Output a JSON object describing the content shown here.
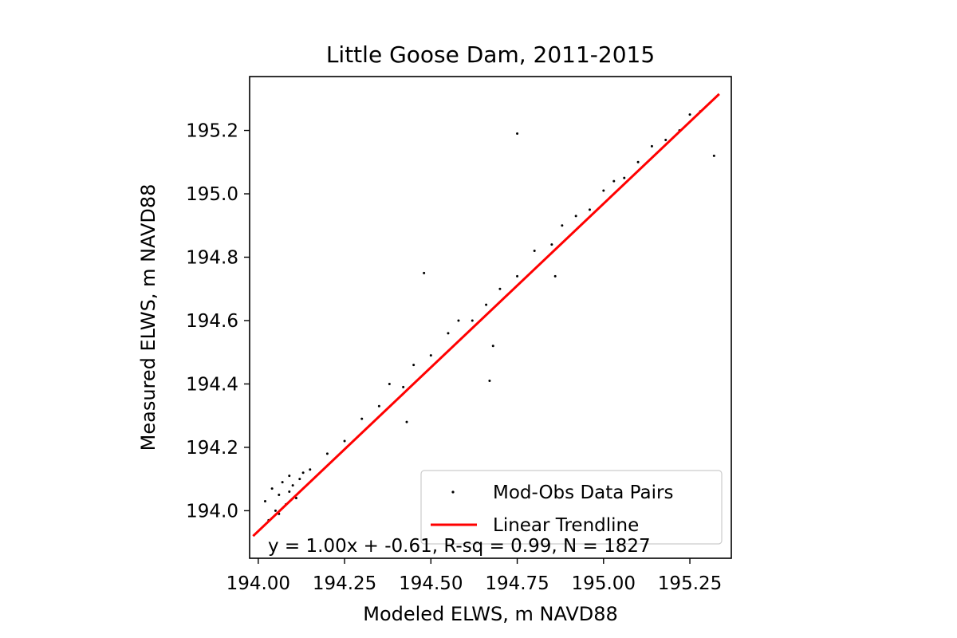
{
  "chart_data": {
    "type": "scatter",
    "title": "Little Goose Dam, 2011-2015",
    "xlabel": "Modeled ELWS, m NAVD88",
    "ylabel": "Measured ELWS, m NAVD88",
    "xlim": [
      193.975,
      195.37
    ],
    "ylim": [
      193.85,
      195.37
    ],
    "xticks": [
      194.0,
      194.25,
      194.5,
      194.75,
      195.0,
      195.25
    ],
    "xtick_labels": [
      "194.00",
      "194.25",
      "194.50",
      "194.75",
      "195.00",
      "195.25"
    ],
    "yticks": [
      194.0,
      194.2,
      194.4,
      194.6,
      194.8,
      195.0,
      195.2
    ],
    "ytick_labels": [
      "194.0",
      "194.2",
      "194.4",
      "194.6",
      "194.8",
      "195.0",
      "195.2"
    ],
    "grid": false,
    "legend_position": "lower-right",
    "annotation": "y = 1.00x + -0.61, R-sq = 0.99, N = 1827",
    "series": [
      {
        "name": "Mod-Obs Data Pairs",
        "kind": "scatter",
        "color": "#000000",
        "n": 1827,
        "points": [
          [
            194.02,
            194.03
          ],
          [
            194.05,
            194.0
          ],
          [
            194.06,
            194.05
          ],
          [
            194.08,
            194.02
          ],
          [
            194.09,
            194.06
          ],
          [
            194.1,
            194.08
          ],
          [
            194.12,
            194.1
          ],
          [
            194.07,
            194.09
          ],
          [
            194.04,
            194.07
          ],
          [
            194.11,
            194.04
          ],
          [
            194.13,
            194.12
          ],
          [
            194.06,
            193.99
          ],
          [
            194.03,
            193.97
          ],
          [
            194.09,
            194.11
          ],
          [
            194.15,
            194.13
          ],
          [
            194.2,
            194.18
          ],
          [
            194.25,
            194.22
          ],
          [
            194.3,
            194.29
          ],
          [
            194.35,
            194.33
          ],
          [
            194.38,
            194.4
          ],
          [
            194.42,
            194.39
          ],
          [
            194.45,
            194.46
          ],
          [
            194.5,
            194.49
          ],
          [
            194.55,
            194.56
          ],
          [
            194.58,
            194.6
          ],
          [
            194.62,
            194.6
          ],
          [
            194.66,
            194.65
          ],
          [
            194.7,
            194.7
          ],
          [
            194.75,
            194.74
          ],
          [
            194.8,
            194.82
          ],
          [
            194.85,
            194.84
          ],
          [
            194.88,
            194.9
          ],
          [
            194.92,
            194.93
          ],
          [
            194.96,
            194.95
          ],
          [
            195.0,
            195.01
          ],
          [
            195.03,
            195.04
          ],
          [
            195.06,
            195.05
          ],
          [
            195.1,
            195.1
          ],
          [
            195.14,
            195.15
          ],
          [
            195.18,
            195.17
          ],
          [
            195.22,
            195.2
          ],
          [
            195.25,
            195.25
          ],
          [
            195.28,
            195.26
          ],
          [
            195.32,
            195.12
          ],
          [
            194.75,
            195.19
          ],
          [
            194.48,
            194.75
          ],
          [
            194.67,
            194.41
          ],
          [
            194.43,
            194.28
          ],
          [
            194.68,
            194.52
          ],
          [
            194.86,
            194.74
          ]
        ]
      },
      {
        "name": "Linear Trendline",
        "kind": "line",
        "color": "#ff0000",
        "x": [
          193.985,
          195.335
        ],
        "y": [
          193.92,
          195.315
        ]
      }
    ]
  }
}
